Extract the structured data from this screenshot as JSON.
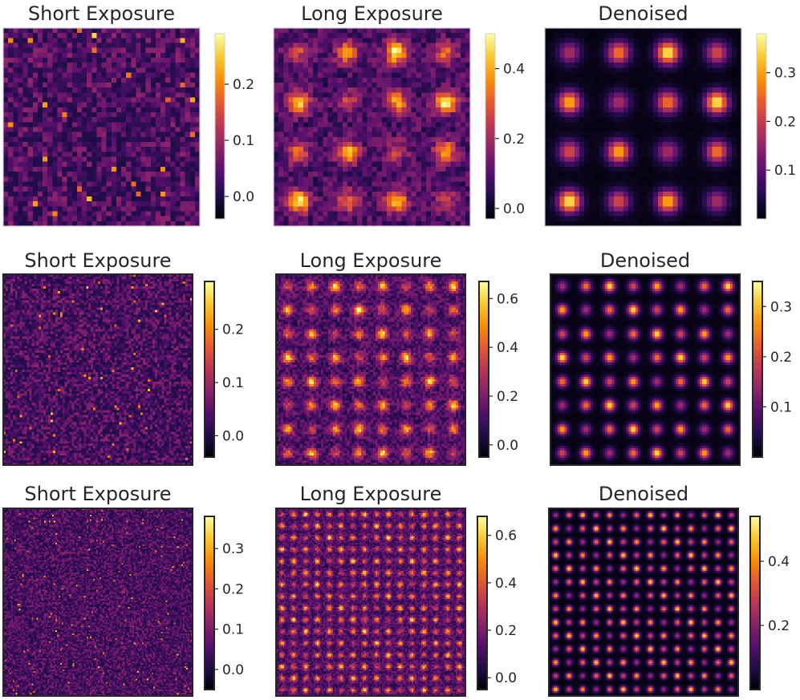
{
  "chart_data": [
    {
      "type": "heatmap",
      "title": "Short Exposure",
      "colorbar_ticks": [
        "0.0",
        "0.1",
        "0.2"
      ],
      "colorbar_range": [
        -0.04,
        0.29
      ],
      "grid_n": 40,
      "pattern": "noise",
      "colormap": "inferno"
    },
    {
      "type": "heatmap",
      "title": "Long Exposure",
      "colorbar_ticks": [
        "0.0",
        "0.2",
        "0.4"
      ],
      "colorbar_range": [
        -0.03,
        0.5
      ],
      "grid_n": 40,
      "pattern": "noisy-spots",
      "spots_per_row": 4,
      "colormap": "inferno"
    },
    {
      "type": "heatmap",
      "title": "Denoised",
      "colorbar_ticks": [
        "0.1",
        "0.2",
        "0.3"
      ],
      "colorbar_range": [
        0.0,
        0.38
      ],
      "grid_n": 40,
      "pattern": "clean-spots",
      "spots_per_row": 4,
      "colormap": "inferno"
    },
    {
      "type": "heatmap",
      "title": "Short Exposure",
      "colorbar_ticks": [
        "0.0",
        "0.1",
        "0.2"
      ],
      "colorbar_range": [
        -0.04,
        0.29
      ],
      "grid_n": 80,
      "pattern": "noise",
      "colormap": "inferno"
    },
    {
      "type": "heatmap",
      "title": "Long Exposure",
      "colorbar_ticks": [
        "0.0",
        "0.2",
        "0.4",
        "0.6"
      ],
      "colorbar_range": [
        -0.05,
        0.67
      ],
      "grid_n": 80,
      "pattern": "noisy-spots",
      "spots_per_row": 8,
      "colormap": "inferno"
    },
    {
      "type": "heatmap",
      "title": "Denoised",
      "colorbar_ticks": [
        "0.1",
        "0.2",
        "0.3"
      ],
      "colorbar_range": [
        0.0,
        0.35
      ],
      "grid_n": 80,
      "pattern": "clean-spots",
      "spots_per_row": 8,
      "colormap": "inferno"
    },
    {
      "type": "heatmap",
      "title": "Short Exposure",
      "colorbar_ticks": [
        "0.0",
        "0.1",
        "0.2",
        "0.3"
      ],
      "colorbar_range": [
        -0.05,
        0.38
      ],
      "grid_n": 120,
      "pattern": "noise",
      "colormap": "inferno"
    },
    {
      "type": "heatmap",
      "title": "Long Exposure",
      "colorbar_ticks": [
        "0.0",
        "0.2",
        "0.4",
        "0.6"
      ],
      "colorbar_range": [
        -0.05,
        0.68
      ],
      "grid_n": 120,
      "pattern": "noisy-spots",
      "spots_per_row": 16,
      "colormap": "inferno"
    },
    {
      "type": "heatmap",
      "title": "Denoised",
      "colorbar_ticks": [
        "0.2",
        "0.4"
      ],
      "colorbar_range": [
        0.0,
        0.54
      ],
      "grid_n": 120,
      "pattern": "clean-spots",
      "spots_per_row": 14,
      "colormap": "inferno"
    }
  ]
}
